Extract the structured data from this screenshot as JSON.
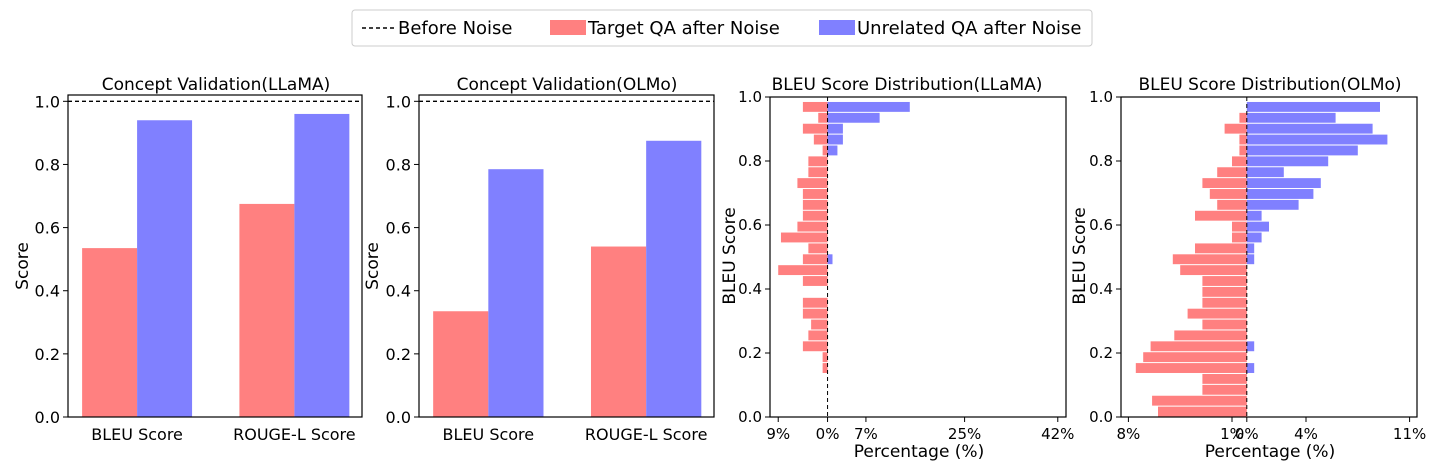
{
  "legend": {
    "before": "Before Noise",
    "target": "Target QA after Noise",
    "unrelated": "Unrelated QA after Noise"
  },
  "colors": {
    "target": "#ff8080",
    "unrelated": "#8080ff",
    "before": "#000000"
  },
  "chart_data": [
    {
      "type": "bar",
      "title": "Concept Validation(LLaMA)",
      "ylabel": "Score",
      "xlabel": "",
      "categories": [
        "BLEU Score",
        "ROUGE-L Score"
      ],
      "series": [
        {
          "name": "Target QA after Noise",
          "values": [
            0.535,
            0.675
          ]
        },
        {
          "name": "Unrelated QA after Noise",
          "values": [
            0.94,
            0.96
          ]
        }
      ],
      "before_noise": 1.0,
      "ylim": [
        0,
        1.0
      ],
      "yticks": [
        "0.0",
        "0.2",
        "0.4",
        "0.6",
        "0.8",
        "1.0"
      ]
    },
    {
      "type": "bar",
      "title": "Concept Validation(OLMo)",
      "ylabel": "Score",
      "xlabel": "",
      "categories": [
        "BLEU Score",
        "ROUGE-L Score"
      ],
      "series": [
        {
          "name": "Target QA after Noise",
          "values": [
            0.335,
            0.54
          ]
        },
        {
          "name": "Unrelated QA after Noise",
          "values": [
            0.785,
            0.875
          ]
        }
      ],
      "before_noise": 1.0,
      "ylim": [
        0,
        1.0
      ],
      "yticks": [
        "0.0",
        "0.2",
        "0.4",
        "0.6",
        "0.8",
        "1.0"
      ]
    },
    {
      "type": "bar",
      "orientation": "horizontal-mirrored",
      "title": "BLEU Score Distribution(LLaMA)",
      "ylabel": "BLEU Score",
      "xlabel": "Percentage (%)",
      "ylim": [
        0,
        1.0
      ],
      "yticks": [
        "0.0",
        "0.2",
        "0.4",
        "0.6",
        "0.8",
        "1.0"
      ],
      "xlim": [
        -10.5,
        43.5
      ],
      "xticks": [
        {
          "value": -9,
          "label": "9%"
        },
        {
          "value": 0,
          "label": "0%"
        },
        {
          "value": 7,
          "label": "7%"
        },
        {
          "value": 25,
          "label": "25%"
        },
        {
          "value": 42,
          "label": "42%"
        }
      ],
      "bin_width": 0.034,
      "bins": [
        0.0,
        0.034,
        0.068,
        0.102,
        0.136,
        0.17,
        0.204,
        0.238,
        0.272,
        0.306,
        0.34,
        0.374,
        0.408,
        0.442,
        0.476,
        0.51,
        0.544,
        0.578,
        0.612,
        0.646,
        0.68,
        0.714,
        0.748,
        0.782,
        0.816,
        0.85,
        0.884,
        0.918,
        0.952
      ],
      "series": [
        {
          "name": "Target QA after Noise",
          "values": [
            0,
            0,
            0,
            0,
            0.9,
            0.9,
            4.5,
            3.5,
            3.0,
            4.5,
            4.5,
            0,
            4.5,
            9.0,
            4.5,
            3.5,
            8.5,
            5.5,
            4.5,
            4.5,
            4.5,
            5.5,
            3.5,
            3.5,
            0.9,
            2.5,
            4.5,
            1.7,
            4.5
          ]
        },
        {
          "name": "Unrelated QA after Noise",
          "values": [
            0,
            0,
            0,
            0,
            0,
            0,
            0,
            0,
            0,
            0,
            0,
            0,
            0,
            0,
            0.9,
            0,
            0,
            0,
            0,
            0,
            0,
            0,
            0,
            0,
            1.8,
            2.8,
            2.8,
            9.5,
            15.0
          ]
        }
      ]
    },
    {
      "type": "bar",
      "orientation": "horizontal-mirrored",
      "title": "BLEU Score Distribution(OLMo)",
      "ylabel": "BLEU Score",
      "xlabel": "Percentage (%)",
      "ylim": [
        0,
        1.0
      ],
      "yticks": [
        "0.0",
        "0.2",
        "0.4",
        "0.6",
        "0.8",
        "1.0"
      ],
      "xlim": [
        -8.5,
        11.5
      ],
      "xticks": [
        {
          "value": -8,
          "label": "8%"
        },
        {
          "value": -1,
          "label": "1%"
        },
        {
          "value": 0,
          "label": "0%"
        },
        {
          "value": 4,
          "label": "4%"
        },
        {
          "value": 11,
          "label": "11%"
        }
      ],
      "bin_width": 0.034,
      "bins": [
        0.0,
        0.034,
        0.068,
        0.102,
        0.136,
        0.17,
        0.204,
        0.238,
        0.272,
        0.306,
        0.34,
        0.374,
        0.408,
        0.442,
        0.476,
        0.51,
        0.544,
        0.578,
        0.612,
        0.646,
        0.68,
        0.714,
        0.748,
        0.782,
        0.816,
        0.85,
        0.884,
        0.918,
        0.952
      ],
      "series": [
        {
          "name": "Target QA after Noise",
          "values": [
            6.0,
            6.4,
            3.0,
            3.0,
            7.5,
            7.0,
            6.5,
            4.9,
            3.0,
            4.0,
            3.0,
            3.0,
            3.0,
            4.5,
            5.0,
            3.5,
            1.0,
            1.0,
            3.5,
            2.0,
            2.5,
            3.0,
            2.0,
            1.0,
            0.5,
            0.5,
            1.5,
            0.5,
            0
          ]
        },
        {
          "name": "Unrelated QA after Noise",
          "values": [
            0,
            0,
            0,
            0,
            0.5,
            0,
            0.5,
            0,
            0,
            0,
            0,
            0,
            0,
            0,
            0.5,
            0.5,
            1.0,
            1.5,
            1.0,
            3.5,
            4.5,
            5.0,
            2.5,
            5.5,
            7.5,
            9.5,
            8.5,
            6.0,
            9.0
          ]
        }
      ]
    }
  ]
}
